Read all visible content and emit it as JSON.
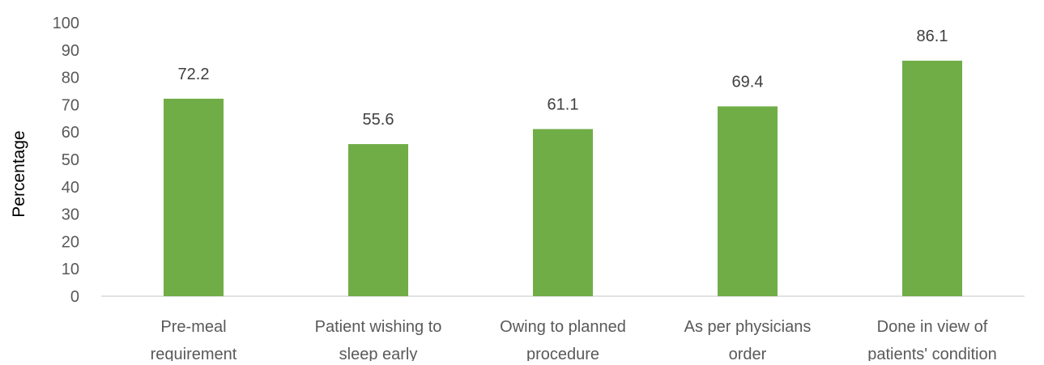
{
  "chart_data": {
    "type": "bar",
    "categories": [
      [
        "Pre-meal",
        "requirement"
      ],
      [
        "Patient wishing to",
        "sleep early"
      ],
      [
        "Owing to planned",
        "procedure"
      ],
      [
        "As per physicians",
        "order"
      ],
      [
        "Done in view of",
        "patients' condition"
      ]
    ],
    "values": [
      72.2,
      55.6,
      61.1,
      69.4,
      86.1
    ],
    "value_labels": [
      "72.2",
      "55.6",
      "61.1",
      "69.4",
      "86.1"
    ],
    "title": "",
    "xlabel": "",
    "ylabel": "Percentage",
    "ylim": [
      0,
      100
    ],
    "yticks": [
      "0",
      "10",
      "20",
      "30",
      "40",
      "50",
      "60",
      "70",
      "80",
      "90",
      "100"
    ],
    "grid": false,
    "legend": "none",
    "bar_color": "#70ad47",
    "axis_color": "#d9d9d9"
  }
}
